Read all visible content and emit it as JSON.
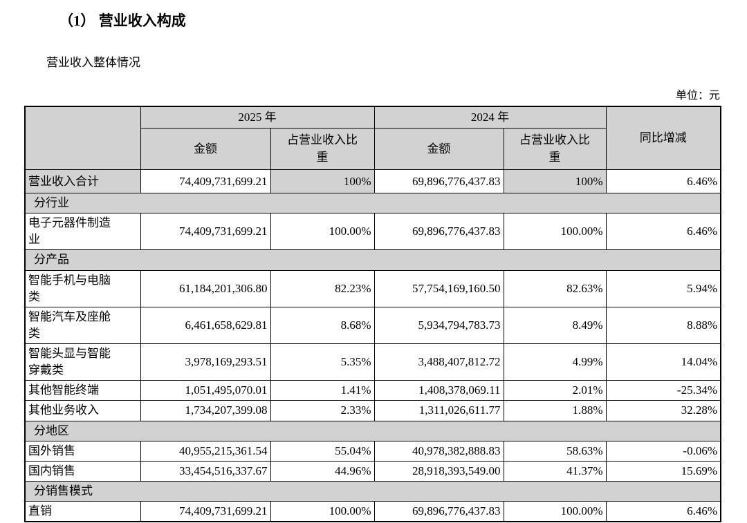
{
  "page": {
    "heading": "（1） 营业收入构成",
    "subheading": "营业收入整体情况",
    "unit_label": "单位：元"
  },
  "table": {
    "header": {
      "year_2025": "2025 年",
      "year_2024": "2024 年",
      "amount": "金额",
      "share": "占营业收入比重",
      "yoy": "同比增减"
    },
    "rows": [
      {
        "type": "total",
        "label": "营业收入合计",
        "amount_2025": "74,409,731,699.21",
        "share_2025": "100%",
        "amount_2024": "69,896,776,437.83",
        "share_2024": "100%",
        "yoy": "6.46%"
      },
      {
        "type": "section",
        "label": "分行业"
      },
      {
        "type": "data",
        "label": "电子元器件制造业",
        "amount_2025": "74,409,731,699.21",
        "share_2025": "100.00%",
        "amount_2024": "69,896,776,437.83",
        "share_2024": "100.00%",
        "yoy": "6.46%"
      },
      {
        "type": "section",
        "label": "分产品"
      },
      {
        "type": "data",
        "label": "智能手机与电脑类",
        "amount_2025": "61,184,201,306.80",
        "share_2025": "82.23%",
        "amount_2024": "57,754,169,160.50",
        "share_2024": "82.63%",
        "yoy": "5.94%"
      },
      {
        "type": "data",
        "label": "智能汽车及座舱类",
        "amount_2025": "6,461,658,629.81",
        "share_2025": "8.68%",
        "amount_2024": "5,934,794,783.73",
        "share_2024": "8.49%",
        "yoy": "8.88%"
      },
      {
        "type": "data",
        "label": "智能头显与智能穿戴类",
        "amount_2025": "3,978,169,293.51",
        "share_2025": "5.35%",
        "amount_2024": "3,488,407,812.72",
        "share_2024": "4.99%",
        "yoy": "14.04%"
      },
      {
        "type": "data",
        "label": "其他智能终端",
        "amount_2025": "1,051,495,070.01",
        "share_2025": "1.41%",
        "amount_2024": "1,408,378,069.11",
        "share_2024": "2.01%",
        "yoy": "-25.34%"
      },
      {
        "type": "data",
        "label": "其他业务收入",
        "amount_2025": "1,734,207,399.08",
        "share_2025": "2.33%",
        "amount_2024": "1,311,026,611.77",
        "share_2024": "1.88%",
        "yoy": "32.28%"
      },
      {
        "type": "section",
        "label": "分地区"
      },
      {
        "type": "data",
        "label": "国外销售",
        "amount_2025": "40,955,215,361.54",
        "share_2025": "55.04%",
        "amount_2024": "40,978,382,888.83",
        "share_2024": "58.63%",
        "yoy": "-0.06%"
      },
      {
        "type": "data",
        "label": "国内销售",
        "amount_2025": "33,454,516,337.67",
        "share_2025": "44.96%",
        "amount_2024": "28,918,393,549.00",
        "share_2024": "41.37%",
        "yoy": "15.69%"
      },
      {
        "type": "section",
        "label": "分销售模式"
      },
      {
        "type": "data",
        "label": "直销",
        "amount_2025": "74,409,731,699.21",
        "share_2025": "100.00%",
        "amount_2024": "69,896,776,437.83",
        "share_2024": "100.00%",
        "yoy": "6.46%"
      }
    ]
  }
}
